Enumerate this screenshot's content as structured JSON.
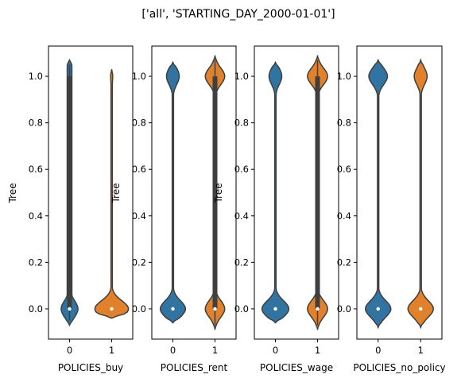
{
  "figure_title": "['all', 'STARTING_DAY_2000-01-01']",
  "colors": {
    "category_0": "#3274a1",
    "category_1": "#e1812c",
    "outline": "#3f3f3f"
  },
  "chart_data": [
    {
      "type": "violin",
      "xlabel": "POLICIES_buy",
      "ylabel": "Tree",
      "categories": [
        "0",
        "1"
      ],
      "ylim": [
        -0.13,
        1.13
      ],
      "yticks": [
        "0.0",
        "0.2",
        "0.4",
        "0.6",
        "0.8",
        "1.0"
      ],
      "violins": [
        {
          "category": "0",
          "color": "#3274a1",
          "extent": [
            -0.07,
            1.07
          ],
          "peaks": [
            {
              "y": 0.0,
              "w": 0.5
            },
            {
              "y": 1.0,
              "w": 0.12
            }
          ],
          "base_w": 0.14,
          "median": 0.0,
          "box": [
            0.0,
            1.0
          ]
        },
        {
          "category": "1",
          "color": "#e1812c",
          "extent": [
            -0.04,
            1.03
          ],
          "peaks": [
            {
              "y": 0.0,
              "w": 1.0
            },
            {
              "y": 1.0,
              "w": 0.06
            }
          ],
          "base_w": 0.04,
          "median": 0.0,
          "box": [
            0.0,
            0.0
          ]
        }
      ]
    },
    {
      "type": "violin",
      "xlabel": "POLICIES_rent",
      "ylabel": "Tree",
      "categories": [
        "0",
        "1"
      ],
      "ylim": [
        -0.13,
        1.13
      ],
      "yticks": [
        "0.0",
        "0.2",
        "0.4",
        "0.6",
        "0.8",
        "1.0"
      ],
      "violins": [
        {
          "category": "0",
          "color": "#3274a1",
          "extent": [
            -0.06,
            1.06
          ],
          "peaks": [
            {
              "y": 0.0,
              "w": 0.75
            },
            {
              "y": 1.0,
              "w": 0.38
            }
          ],
          "base_w": 0.04,
          "median": 0.0,
          "box": [
            0.0,
            0.0
          ]
        },
        {
          "category": "1",
          "color": "#e1812c",
          "extent": [
            -0.09,
            1.09
          ],
          "peaks": [
            {
              "y": 0.0,
              "w": 0.58
            },
            {
              "y": 1.0,
              "w": 0.58
            }
          ],
          "base_w": 0.04,
          "median": 0.0,
          "box": [
            0.0,
            1.0
          ]
        }
      ]
    },
    {
      "type": "violin",
      "xlabel": "POLICIES_wage",
      "ylabel": "Tree",
      "categories": [
        "0",
        "1"
      ],
      "ylim": [
        -0.13,
        1.13
      ],
      "yticks": [
        "0.0",
        "0.2",
        "0.4",
        "0.6",
        "0.8",
        "1.0"
      ],
      "violins": [
        {
          "category": "0",
          "color": "#3274a1",
          "extent": [
            -0.06,
            1.06
          ],
          "peaks": [
            {
              "y": 0.0,
              "w": 0.8
            },
            {
              "y": 1.0,
              "w": 0.38
            }
          ],
          "base_w": 0.04,
          "median": 0.0,
          "box": [
            0.0,
            0.0
          ]
        },
        {
          "category": "1",
          "color": "#e1812c",
          "extent": [
            -0.09,
            1.09
          ],
          "peaks": [
            {
              "y": 0.0,
              "w": 0.6
            },
            {
              "y": 1.0,
              "w": 0.6
            }
          ],
          "base_w": 0.04,
          "median": 0.0,
          "box": [
            0.0,
            1.0
          ]
        }
      ]
    },
    {
      "type": "violin",
      "xlabel": "POLICIES_no_policy",
      "ylabel": "",
      "categories": [
        "0",
        "1"
      ],
      "ylim": [
        -0.13,
        1.13
      ],
      "yticks": [
        "0.0",
        "0.2",
        "0.4",
        "0.6",
        "0.8",
        "1.0"
      ],
      "violins": [
        {
          "category": "0",
          "color": "#3274a1",
          "extent": [
            -0.08,
            1.07
          ],
          "peaks": [
            {
              "y": 0.0,
              "w": 0.75
            },
            {
              "y": 1.0,
              "w": 0.55
            }
          ],
          "base_w": 0.04,
          "median": 0.0,
          "box": [
            0.0,
            0.0
          ]
        },
        {
          "category": "1",
          "color": "#e1812c",
          "extent": [
            -0.08,
            1.07
          ],
          "peaks": [
            {
              "y": 0.0,
              "w": 0.75
            },
            {
              "y": 1.0,
              "w": 0.38
            }
          ],
          "base_w": 0.04,
          "median": 0.0,
          "box": [
            0.0,
            0.0
          ]
        }
      ]
    }
  ]
}
